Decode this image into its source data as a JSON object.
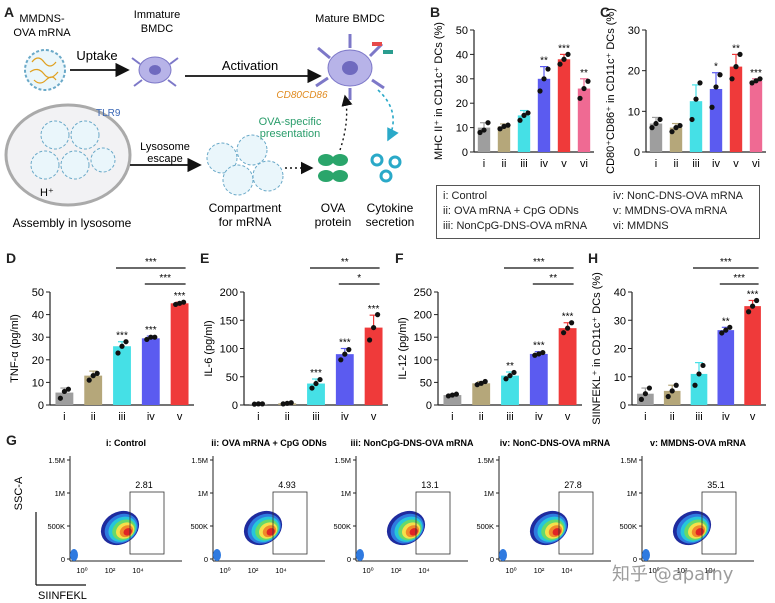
{
  "panel_letters": {
    "A": "A",
    "B": "B",
    "C": "C",
    "D": "D",
    "E": "E",
    "F": "F",
    "G": "G",
    "H": "H"
  },
  "schematic": {
    "nanoparticle_label_line1": "MMDNS-",
    "nanoparticle_label_line2": "OVA mRNA",
    "uptake": "Uptake",
    "immature_line1": "Immature",
    "immature_line2": "BMDC",
    "activation": "Activation",
    "mature": "Mature BMDC",
    "markers": "CD80CD86",
    "tlr9": "TLR9",
    "h_plus": "H⁺",
    "lysosome_line1": "Lysosome",
    "lysosome_line2": "escape",
    "ova_line1": "OVA-specific",
    "ova_line2": "presentation",
    "assembly": "Assembly in lysosome",
    "compartment_line1": "Compartment",
    "compartment_line2": "for mRNA",
    "protein_line1": "OVA",
    "protein_line2": "protein",
    "cytokine_line1": "Cytokine",
    "cytokine_line2": "secretion"
  },
  "legend": {
    "items": [
      "i: Control",
      "iv: NonC-DNS-OVA mRNA",
      "ii: OVA mRNA + CpG ODNs",
      "v: MMDNS-OVA mRNA",
      "iii: NonCpG-DNS-OVA mRNA",
      "vi: MMDNS"
    ]
  },
  "colors": {
    "i": "#9e9e9e",
    "ii": "#b5a77a",
    "iii": "#45e0e6",
    "iv": "#5b5bf0",
    "v": "#ef3a3a",
    "vi": "#ef6a93"
  },
  "chart_data": [
    {
      "id": "B",
      "type": "bar",
      "ylabel": "MHC II⁺ in CD11c⁺ DCs (%)",
      "categories": [
        "i",
        "ii",
        "iii",
        "iv",
        "v",
        "vi"
      ],
      "values": [
        10,
        10.5,
        15,
        30,
        38,
        26
      ],
      "errors": [
        2,
        1,
        2,
        5,
        2,
        4
      ],
      "points": [
        [
          8,
          9,
          12
        ],
        [
          9.5,
          10.5,
          11
        ],
        [
          13,
          15,
          16
        ],
        [
          25,
          30,
          34
        ],
        [
          36,
          38,
          40
        ],
        [
          22,
          26,
          29
        ]
      ],
      "significance": [
        "",
        "",
        "",
        "**",
        "***",
        "**"
      ],
      "ylim": [
        0,
        50
      ],
      "yticks": [
        0,
        10,
        20,
        30,
        40,
        50
      ]
    },
    {
      "id": "C",
      "type": "bar",
      "ylabel": "CD80⁺CD86⁺ in CD11c⁺ DCs (%)",
      "categories": [
        "i",
        "ii",
        "iii",
        "iv",
        "v",
        "vi"
      ],
      "values": [
        7,
        6,
        12.5,
        15.5,
        21,
        17.5
      ],
      "errors": [
        1.5,
        1,
        4,
        4,
        3,
        0.5
      ],
      "points": [
        [
          6,
          7,
          8
        ],
        [
          5,
          6,
          6.5
        ],
        [
          8,
          13,
          17
        ],
        [
          11,
          16,
          19
        ],
        [
          18,
          21,
          24
        ],
        [
          17,
          17.5,
          18
        ]
      ],
      "significance": [
        "",
        "",
        "",
        "*",
        "**",
        "***"
      ],
      "ylim": [
        0,
        30
      ],
      "yticks": [
        0,
        10,
        20,
        30
      ]
    },
    {
      "id": "D",
      "type": "bar",
      "ylabel": "TNF-α (pg/ml)",
      "categories": [
        "i",
        "ii",
        "iii",
        "iv",
        "v"
      ],
      "values": [
        5.5,
        13,
        26,
        29.5,
        45
      ],
      "errors": [
        2,
        2,
        2,
        1,
        0.5
      ],
      "points": [
        [
          3,
          6,
          7
        ],
        [
          11,
          13,
          14
        ],
        [
          23,
          26,
          28
        ],
        [
          29,
          30,
          30
        ],
        [
          44.5,
          45,
          45.5
        ]
      ],
      "significance": [
        "",
        "",
        "***",
        "***",
        "***"
      ],
      "brackets": [
        {
          "from": "iii",
          "to": "v",
          "label": "***"
        },
        {
          "from": "iv",
          "to": "v",
          "label": "***"
        }
      ],
      "ylim": [
        0,
        50
      ],
      "yticks": [
        0,
        10,
        20,
        30,
        40,
        50
      ]
    },
    {
      "id": "E",
      "type": "bar",
      "ylabel": "IL-6 (pg/ml)",
      "categories": [
        "i",
        "ii",
        "iii",
        "iv",
        "v"
      ],
      "values": [
        2,
        3,
        38,
        90,
        137
      ],
      "errors": [
        0.5,
        1,
        8,
        10,
        22
      ],
      "points": [
        [
          1.5,
          2,
          2
        ],
        [
          2,
          3,
          4
        ],
        [
          30,
          38,
          45
        ],
        [
          80,
          90,
          98
        ],
        [
          115,
          137,
          160
        ]
      ],
      "significance": [
        "",
        "",
        "***",
        "***",
        "***"
      ],
      "brackets": [
        {
          "from": "iii",
          "to": "v",
          "label": "**"
        },
        {
          "from": "iv",
          "to": "v",
          "label": "*"
        }
      ],
      "ylim": [
        0,
        200
      ],
      "yticks": [
        0,
        50,
        100,
        150,
        200
      ]
    },
    {
      "id": "F",
      "type": "bar",
      "ylabel": "IL-12 (pg/ml)",
      "categories": [
        "i",
        "ii",
        "iii",
        "iv",
        "v"
      ],
      "values": [
        22,
        48,
        65,
        113,
        170
      ],
      "errors": [
        2,
        4,
        8,
        5,
        12
      ],
      "points": [
        [
          20,
          22,
          24
        ],
        [
          45,
          48,
          52
        ],
        [
          58,
          65,
          72
        ],
        [
          110,
          113,
          116
        ],
        [
          160,
          170,
          182
        ]
      ],
      "significance": [
        "",
        "",
        "**",
        "***",
        "***"
      ],
      "brackets": [
        {
          "from": "iii",
          "to": "v",
          "label": "***"
        },
        {
          "from": "iv",
          "to": "v",
          "label": "**"
        }
      ],
      "ylim": [
        0,
        250
      ],
      "yticks": [
        0,
        50,
        100,
        150,
        200,
        250
      ]
    },
    {
      "id": "H",
      "type": "bar",
      "ylabel": "SIINFEKL⁺ in CD11c⁺ DCs (%)",
      "categories": [
        "i",
        "ii",
        "iii",
        "iv",
        "v"
      ],
      "values": [
        4,
        5,
        11,
        26.5,
        35
      ],
      "errors": [
        2,
        2,
        4,
        1,
        2
      ],
      "points": [
        [
          2,
          4,
          6
        ],
        [
          3,
          5,
          7
        ],
        [
          7,
          11,
          14
        ],
        [
          25.5,
          26.5,
          27.5
        ],
        [
          33,
          35,
          37
        ]
      ],
      "significance": [
        "",
        "",
        "",
        "**",
        "***"
      ],
      "brackets": [
        {
          "from": "iii",
          "to": "v",
          "label": "***"
        },
        {
          "from": "iv",
          "to": "v",
          "label": "***"
        }
      ],
      "ylim": [
        0,
        40
      ],
      "yticks": [
        0,
        10,
        20,
        30,
        40
      ]
    },
    {
      "id": "G",
      "type": "scatter",
      "ylabel": "SSC-A",
      "xlabel": "SIINFEKL",
      "yticks": [
        "1.5M",
        "1M",
        "500K",
        "0"
      ],
      "xticks": [
        "10⁰",
        "10²",
        "10⁴"
      ],
      "plots": [
        {
          "title": "i: Control",
          "gate_value": "2.81"
        },
        {
          "title": "ii: OVA mRNA + CpG ODNs",
          "gate_value": "4.93"
        },
        {
          "title": "iii: NonCpG-DNS-OVA mRNA",
          "gate_value": "13.1"
        },
        {
          "title": "iv: NonC-DNS-OVA mRNA",
          "gate_value": "27.8"
        },
        {
          "title": "v: MMDNS-OVA mRNA",
          "gate_value": "35.1"
        }
      ]
    }
  ],
  "watermark": "知乎 @apamy"
}
